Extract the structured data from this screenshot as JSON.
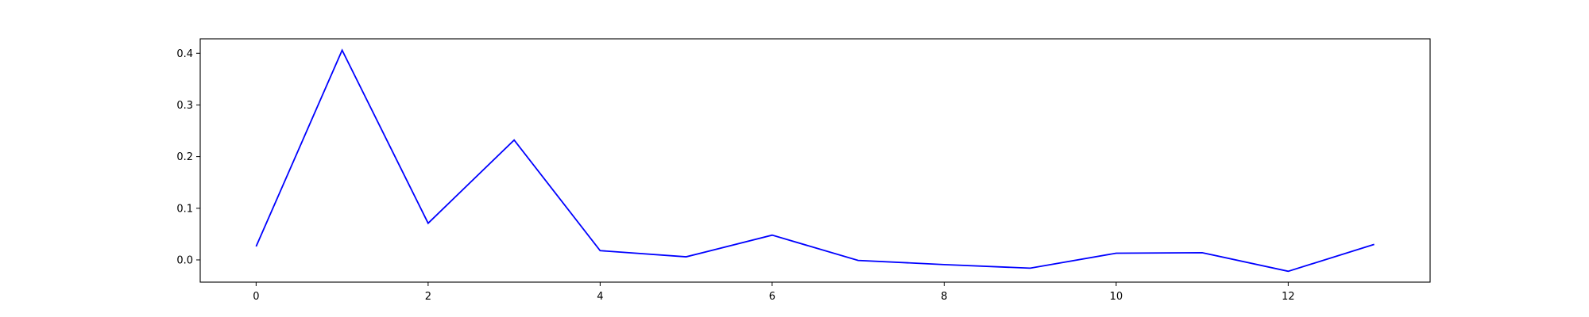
{
  "chart_data": {
    "type": "line",
    "title": "",
    "xlabel": "",
    "ylabel": "",
    "xlim": [
      -0.65,
      13.65
    ],
    "ylim": [
      -0.043,
      0.428
    ],
    "x_ticks": [
      0,
      2,
      4,
      6,
      8,
      10,
      12
    ],
    "x_tick_labels": [
      "0",
      "2",
      "4",
      "6",
      "8",
      "10",
      "12"
    ],
    "y_ticks": [
      0.0,
      0.1,
      0.2,
      0.3,
      0.4
    ],
    "y_tick_labels": [
      "0.0",
      "0.1",
      "0.2",
      "0.3",
      "0.4"
    ],
    "grid": false,
    "legend": "none",
    "series": [
      {
        "color": "#0000ff",
        "x": [
          0,
          1,
          2,
          3,
          4,
          5,
          6,
          7,
          8,
          9,
          10,
          11,
          12,
          13
        ],
        "values": [
          0.026,
          0.406,
          0.071,
          0.232,
          0.018,
          0.006,
          0.048,
          -0.001,
          -0.009,
          -0.016,
          0.013,
          0.014,
          -0.022,
          0.03
        ]
      }
    ]
  }
}
